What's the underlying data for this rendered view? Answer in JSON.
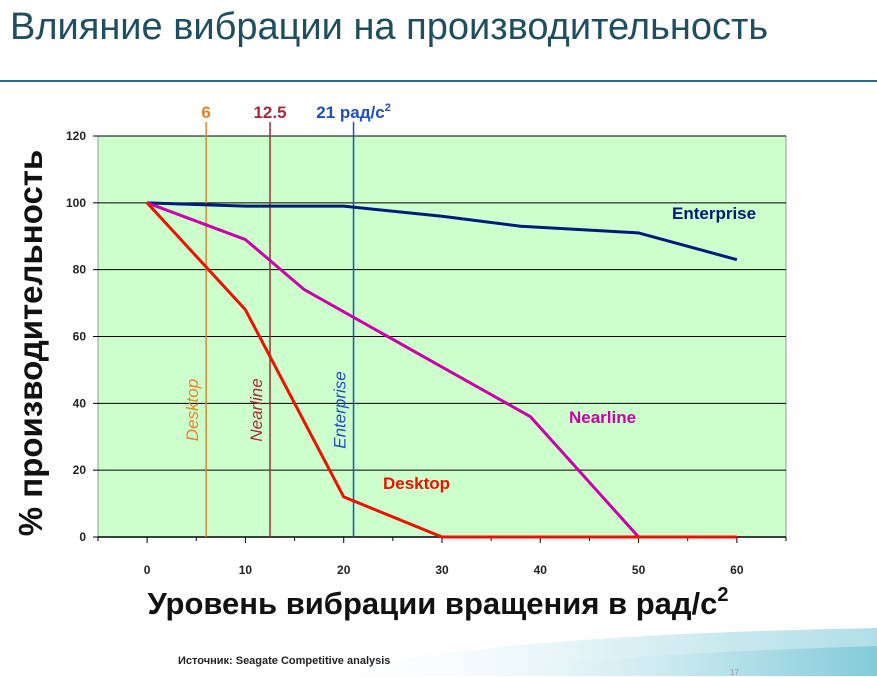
{
  "slide": {
    "title": "Влияние вибрации на производительность",
    "source": "Источник: Seagate Competitive analysis",
    "page_number": "17"
  },
  "colors": {
    "title": "#1f4e5f",
    "plot_background": "#ccffcc",
    "enterprise": "#001a7a",
    "nearline": "#cc00aa",
    "desktop": "#ee1100",
    "threshold_desktop": "#e8822a",
    "threshold_nearline": "#a52a3a",
    "threshold_enterprise": "#1f4fbf"
  },
  "chart_data": {
    "type": "line",
    "title": "",
    "xlabel": "Уровень вибрации вращения в рад/с",
    "xlabel_superscript": "2",
    "ylabel": "% производительность",
    "xlim": [
      -5,
      65
    ],
    "ylim": [
      0,
      120
    ],
    "xticks": [
      0,
      10,
      20,
      30,
      40,
      50,
      60
    ],
    "yticks": [
      0,
      20,
      40,
      60,
      80,
      100,
      120
    ],
    "series": [
      {
        "name": "Enterprise",
        "color_key": "enterprise",
        "x": [
          0,
          10,
          20,
          30,
          38,
          50,
          60
        ],
        "y": [
          100,
          99,
          99,
          96,
          93,
          91,
          83
        ]
      },
      {
        "name": "Nearline",
        "color_key": "nearline",
        "x": [
          0,
          10,
          16,
          39,
          50
        ],
        "y": [
          100,
          89,
          74,
          36,
          0
        ]
      },
      {
        "name": "Desktop",
        "color_key": "desktop",
        "x": [
          0,
          10,
          20,
          30,
          60
        ],
        "y": [
          100,
          68,
          12,
          0,
          0
        ]
      }
    ],
    "thresholds": [
      {
        "x": 6,
        "top_label": "6",
        "line_label": "Desktop",
        "color_key": "threshold_desktop"
      },
      {
        "x": 12.5,
        "top_label": "12.5",
        "line_label": "Nearline",
        "color_key": "threshold_nearline"
      },
      {
        "x": 21,
        "top_label": "21 рад/с",
        "top_label_superscript": "2",
        "line_label": "Enterprise",
        "color_key": "threshold_enterprise"
      }
    ],
    "grid": true,
    "legend": "inline labels next to lines"
  }
}
